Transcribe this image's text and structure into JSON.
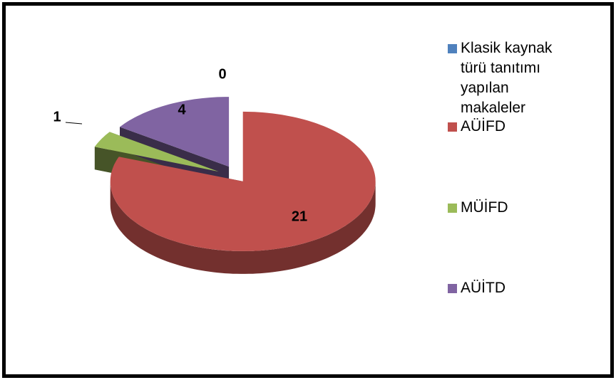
{
  "chart_data": {
    "type": "pie3d",
    "categories": [
      "Klasik kaynak türü tanıtımı yapılan makaleler",
      "AÜİFD",
      "MÜİFD",
      "AÜİTD"
    ],
    "values": [
      0,
      21,
      1,
      4
    ],
    "colors": [
      "#4f81bd",
      "#c0504d",
      "#9bbb59",
      "#8064a2"
    ],
    "legend": "right"
  }
}
